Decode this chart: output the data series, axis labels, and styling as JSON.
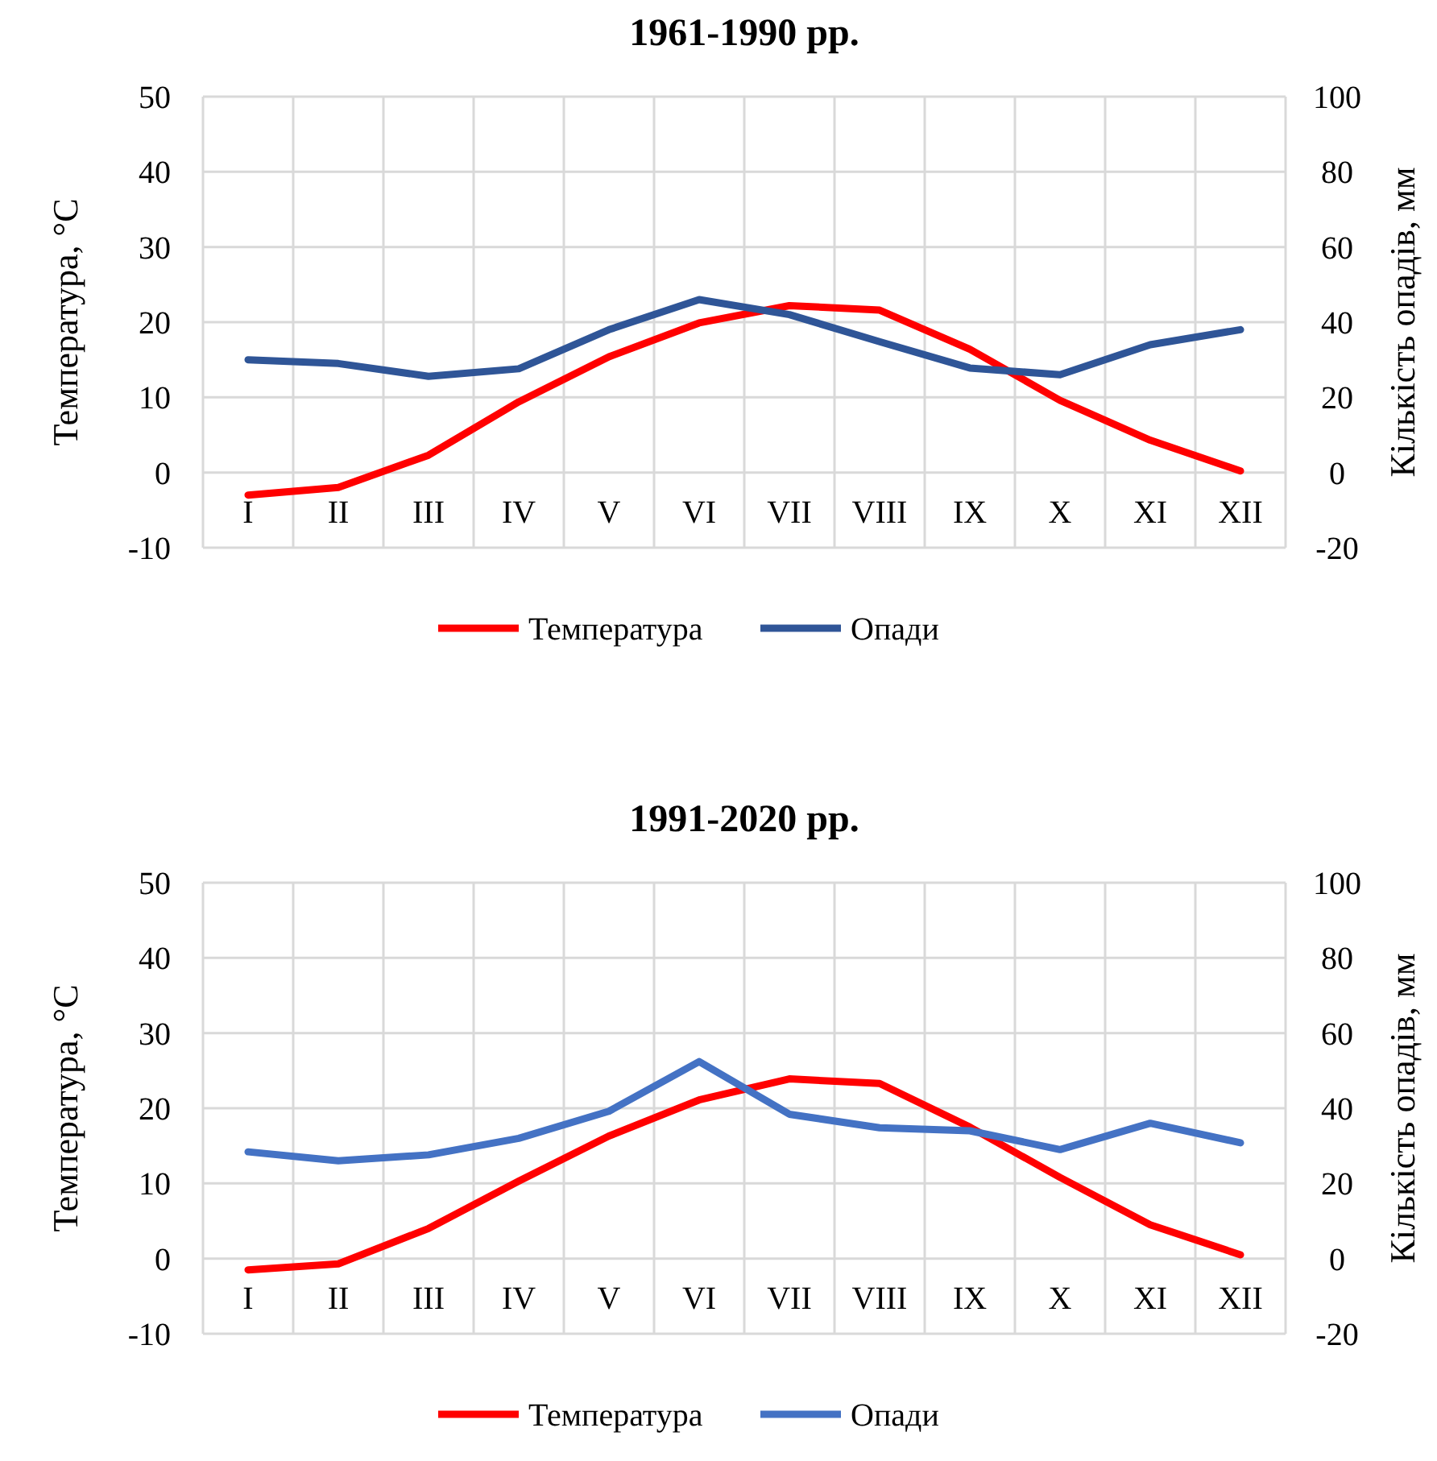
{
  "chart_data": [
    {
      "type": "line",
      "title": "1961-1990 рр.",
      "ylabel": "Температура, °C",
      "y2label": "Кількість опадів, мм",
      "categories": [
        "I",
        "II",
        "III",
        "IV",
        "V",
        "VI",
        "VII",
        "VIII",
        "IX",
        "X",
        "XI",
        "XII"
      ],
      "series": [
        {
          "name": "Температура",
          "color": "#ff0000",
          "values": [
            -3,
            -2,
            2.3,
            9.4,
            15.4,
            19.9,
            22.2,
            21.6,
            16.4,
            9.6,
            4.3,
            0.2
          ]
        },
        {
          "name": "Опади",
          "color": "#2f5597",
          "axis": "y2",
          "values": [
            30,
            29,
            25.6,
            27.6,
            38,
            46,
            42,
            34.8,
            27.8,
            26,
            34,
            38
          ]
        }
      ],
      "ylim": [
        -10,
        50
      ],
      "yticks": [
        -10,
        0,
        10,
        20,
        30,
        40,
        50
      ],
      "y2lim": [
        -20,
        100
      ],
      "y2ticks": [
        -20,
        0,
        20,
        40,
        60,
        80,
        100
      ],
      "grid": true,
      "legend": "bottom",
      "marker": "none",
      "line_style": "solid"
    },
    {
      "type": "line",
      "title": "1991-2020 рр.",
      "ylabel": "Температура, °C",
      "y2label": "Кількість опадів, мм",
      "categories": [
        "I",
        "II",
        "III",
        "IV",
        "V",
        "VI",
        "VII",
        "VIII",
        "IX",
        "X",
        "XI",
        "XII"
      ],
      "series": [
        {
          "name": "Температура",
          "color": "#ff0000",
          "values": [
            -1.5,
            -0.7,
            4,
            10.3,
            16.3,
            21.1,
            23.9,
            23.3,
            17.5,
            10.8,
            4.5,
            0.5
          ]
        },
        {
          "name": "Опади",
          "color": "#4472c4",
          "axis": "y2",
          "values": [
            28.4,
            26,
            27.6,
            32,
            39.2,
            52.4,
            38.4,
            34.8,
            34,
            29,
            36,
            30.8
          ]
        }
      ],
      "ylim": [
        -10,
        50
      ],
      "yticks": [
        -10,
        0,
        10,
        20,
        30,
        40,
        50
      ],
      "y2lim": [
        -20,
        100
      ],
      "y2ticks": [
        -20,
        0,
        20,
        40,
        60,
        80,
        100
      ],
      "grid": true,
      "legend": "bottom",
      "marker": "none",
      "line_style": "solid"
    }
  ]
}
